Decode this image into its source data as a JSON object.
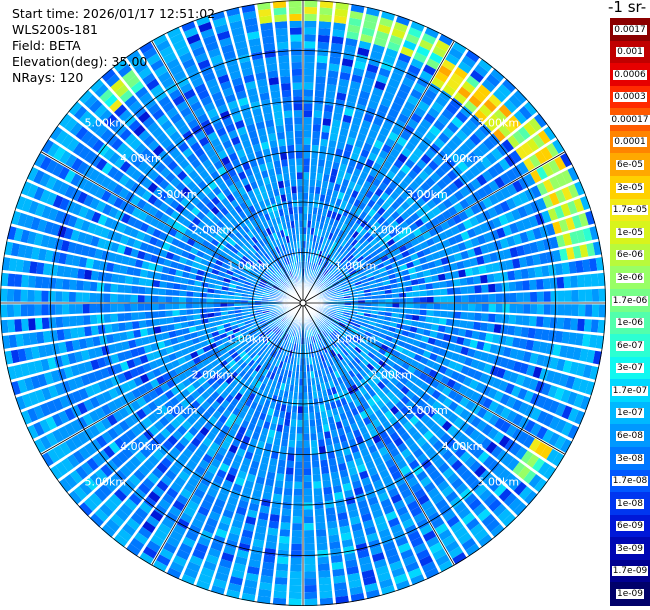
{
  "header": {
    "lines": [
      "Start time: 2026/01/17 12:51:02",
      "WLS200s-181",
      "Field: BETA",
      "Elevation(deg): 35.00",
      "NRays: 120"
    ]
  },
  "colorbar": {
    "unit_label": "-1 sr-",
    "entries": [
      {
        "label": "0.0017",
        "color": "#8b0000"
      },
      {
        "label": "0.001",
        "color": "#c00000"
      },
      {
        "label": "0.0006",
        "color": "#e60000"
      },
      {
        "label": "0.0003",
        "color": "#ff2a00"
      },
      {
        "label": "0.00017",
        "color": "#ff5a00"
      },
      {
        "label": "0.0001",
        "color": "#ff8400"
      },
      {
        "label": "6e-05",
        "color": "#ffa800"
      },
      {
        "label": "3e-05",
        "color": "#ffd000"
      },
      {
        "label": "1.7e-05",
        "color": "#f2ea18"
      },
      {
        "label": "1e-05",
        "color": "#d8f41c"
      },
      {
        "label": "6e-06",
        "color": "#b8fa3c"
      },
      {
        "label": "3e-06",
        "color": "#98ff66"
      },
      {
        "label": "1.7e-06",
        "color": "#76ff88"
      },
      {
        "label": "1e-06",
        "color": "#52ffac"
      },
      {
        "label": "6e-07",
        "color": "#2cffd2"
      },
      {
        "label": "3e-07",
        "color": "#10f8f0"
      },
      {
        "label": "1.7e-07",
        "color": "#00d8ff"
      },
      {
        "label": "1e-07",
        "color": "#00b8ff"
      },
      {
        "label": "6e-08",
        "color": "#0098ff"
      },
      {
        "label": "3e-08",
        "color": "#0078ff"
      },
      {
        "label": "1.7e-08",
        "color": "#0058ff"
      },
      {
        "label": "1e-08",
        "color": "#0036f0"
      },
      {
        "label": "6e-09",
        "color": "#0018d8"
      },
      {
        "label": "3e-09",
        "color": "#0008b4"
      },
      {
        "label": "1.7e-09",
        "color": "#000090"
      },
      {
        "label": "1e-09",
        "color": "#00006a"
      }
    ]
  },
  "chart_data": {
    "type": "heatmap",
    "projection": "polar-ppi",
    "field": "BETA",
    "n_rays": 120,
    "range_rings_km": [
      1,
      2,
      3,
      4,
      5
    ],
    "ring_labels": [
      "1.00km",
      "2.00km",
      "3.00km",
      "4.00km",
      "5.00km"
    ],
    "max_range_km": 6.0,
    "grid_azimuth_spacing_deg": 30,
    "background_value": "1e-07 to 3e-08",
    "aerosol_arcs": [
      {
        "azimuth_from_deg": 350,
        "azimuth_to_deg": 10,
        "range_km_from": 5.6,
        "range_km_to": 5.95,
        "value": "1e-05"
      },
      {
        "azimuth_from_deg": 10,
        "azimuth_to_deg": 30,
        "range_km_from": 5.3,
        "range_km_to": 5.9,
        "value": "3e-06"
      },
      {
        "azimuth_from_deg": 30,
        "azimuth_to_deg": 50,
        "range_km_from": 5.0,
        "range_km_to": 5.6,
        "value": "1.7e-05"
      },
      {
        "azimuth_from_deg": 50,
        "azimuth_to_deg": 82,
        "range_km_from": 5.2,
        "range_km_to": 5.8,
        "value": "1e-05"
      },
      {
        "azimuth_from_deg": 315,
        "azimuth_to_deg": 325,
        "range_km_from": 5.3,
        "range_km_to": 5.7,
        "value": "6e-06"
      },
      {
        "azimuth_from_deg": 120,
        "azimuth_to_deg": 128,
        "range_km_from": 5.3,
        "range_km_to": 5.7,
        "value": "1e-05"
      }
    ]
  }
}
